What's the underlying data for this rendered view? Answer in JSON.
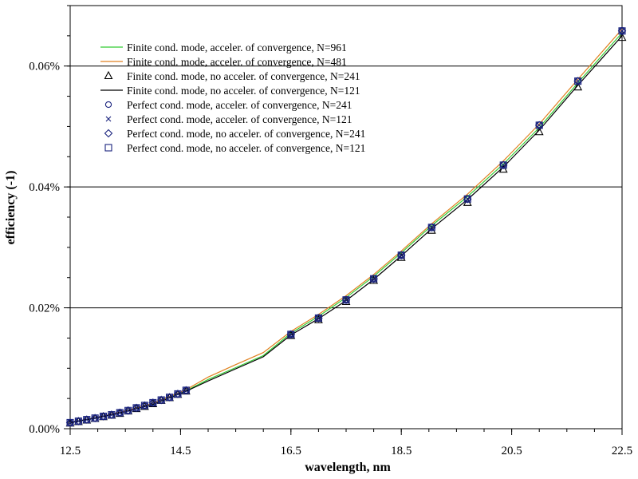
{
  "chart_data": {
    "type": "line",
    "xlabel": "wavelength, nm",
    "ylabel": "efficiency (-1)",
    "xlim": [
      12.5,
      22.5
    ],
    "ylim": [
      0,
      0.0007
    ],
    "x_ticks": [
      12.5,
      14.5,
      16.5,
      18.5,
      20.5,
      22.5
    ],
    "x_tick_labels": [
      "12.5",
      "14.5",
      "16.5",
      "18.5",
      "20.5",
      "22.5"
    ],
    "y_ticks": [
      0,
      0.0002,
      0.0004,
      0.0006
    ],
    "y_tick_labels": [
      "0.00%",
      "0.02%",
      "0.04%",
      "0.06%"
    ],
    "y_minor_step": 5e-05,
    "x_minor_step": 0.5,
    "grid": "horizontal major",
    "legend_placement": "top-left",
    "colors": {
      "green": "#33cc33",
      "orange": "#e08020",
      "black": "#000000",
      "marker": "#1a237e"
    },
    "marker_x": [
      12.5,
      12.65,
      12.8,
      12.95,
      13.1,
      13.25,
      13.4,
      13.55,
      13.7,
      13.85,
      14.0,
      14.15,
      14.3,
      14.45,
      14.6,
      16.5,
      17.0,
      17.5,
      18.0,
      18.5,
      19.05,
      19.7,
      20.35,
      21.0,
      21.7,
      22.5
    ],
    "series": [
      {
        "name": "Finite cond. mode, acceler. of convergence, N=961",
        "style": "line",
        "color": "#33cc33",
        "x": [
          12.5,
          13.0,
          13.5,
          14.0,
          14.6,
          15.0,
          15.5,
          16.0,
          16.5,
          17.0,
          17.5,
          18.0,
          18.5,
          19.05,
          19.7,
          20.35,
          21.0,
          21.7,
          22.5
        ],
        "values": [
          1e-05,
          1.85e-05,
          2.85e-05,
          4.05e-05,
          6.25e-05,
          8.15e-05,
          0.000101,
          0.000121,
          0.000158,
          0.000186,
          0.000217,
          0.000252,
          0.000291,
          0.000336,
          0.000384,
          0.000438,
          0.000498,
          0.000572,
          0.000655
        ]
      },
      {
        "name": "Finite cond. mode, acceler. of convergence, N=481",
        "style": "line",
        "color": "#e08020",
        "x": [
          12.5,
          13.0,
          13.5,
          14.0,
          14.6,
          15.0,
          15.5,
          16.0,
          16.5,
          17.0,
          17.5,
          18.0,
          18.5,
          19.05,
          19.7,
          20.35,
          21.0,
          21.7,
          22.5
        ],
        "values": [
          1e-05,
          1.9e-05,
          2.95e-05,
          4.2e-05,
          6.45e-05,
          8.55e-05,
          0.000106,
          0.000126,
          0.000161,
          0.000189,
          0.00022,
          0.000255,
          0.000294,
          0.000339,
          0.000388,
          0.000443,
          0.000504,
          0.000578,
          0.000661
        ]
      },
      {
        "name": "Finite cond. mode, no acceler. of convergence, N=241",
        "style": "marker",
        "marker": "triangle",
        "values": [
          9e-06,
          1.15e-05,
          1.4e-05,
          1.65e-05,
          1.95e-05,
          2.2e-05,
          2.5e-05,
          2.9e-05,
          3.3e-05,
          3.65e-05,
          4.1e-05,
          4.65e-05,
          5.1e-05,
          5.65e-05,
          6.2e-05,
          0.000154,
          0.00018,
          0.00021,
          0.000245,
          0.000283,
          0.000328,
          0.000374,
          0.000429,
          0.000491,
          0.000565,
          0.000647
        ]
      },
      {
        "name": "Finite cond. mode, no acceler. of convergence, N=121",
        "style": "line",
        "color": "#000000",
        "x": [
          12.5,
          13.0,
          13.5,
          14.0,
          14.6,
          15.0,
          15.5,
          16.0,
          16.5,
          17.0,
          17.5,
          18.0,
          18.5,
          19.05,
          19.7,
          20.35,
          21.0,
          21.7,
          22.5
        ],
        "values": [
          1e-05,
          1.85e-05,
          2.8e-05,
          4e-05,
          6.2e-05,
          7.9e-05,
          9.9e-05,
          0.000119,
          0.000155,
          0.000182,
          0.000212,
          0.000247,
          0.000286,
          0.000331,
          0.000379,
          0.000433,
          0.000494,
          0.000568,
          0.00065
        ]
      },
      {
        "name": "Perfect cond. mode, acceler. of convergence, N=241",
        "style": "marker",
        "marker": "circle",
        "values": [
          1e-05,
          1.25e-05,
          1.5e-05,
          1.75e-05,
          2.05e-05,
          2.3e-05,
          2.65e-05,
          3e-05,
          3.45e-05,
          3.85e-05,
          4.3e-05,
          4.75e-05,
          5.2e-05,
          5.75e-05,
          6.35e-05,
          0.000157,
          0.000184,
          0.000214,
          0.000249,
          0.000288,
          0.000334,
          0.000381,
          0.000437,
          0.000503,
          0.000576,
          0.000659
        ]
      },
      {
        "name": "Perfect cond. mode, acceler. of convergence, N=121",
        "style": "marker",
        "marker": "cross",
        "values": [
          1e-05,
          1.25e-05,
          1.5e-05,
          1.75e-05,
          2.05e-05,
          2.3e-05,
          2.65e-05,
          3e-05,
          3.45e-05,
          3.85e-05,
          4.3e-05,
          4.75e-05,
          5.2e-05,
          5.75e-05,
          6.35e-05,
          0.000156,
          0.000183,
          0.000213,
          0.000248,
          0.000287,
          0.000333,
          0.00038,
          0.000436,
          0.000502,
          0.000575,
          0.000658
        ]
      },
      {
        "name": "Perfect cond. mode, no acceler. of convergence, N=241",
        "style": "marker",
        "marker": "diamond",
        "values": [
          1e-05,
          1.25e-05,
          1.5e-05,
          1.75e-05,
          2.05e-05,
          2.3e-05,
          2.65e-05,
          3e-05,
          3.45e-05,
          3.85e-05,
          4.3e-05,
          4.75e-05,
          5.2e-05,
          5.75e-05,
          6.35e-05,
          0.000156,
          0.000183,
          0.000213,
          0.000248,
          0.000287,
          0.000333,
          0.00038,
          0.000436,
          0.000502,
          0.000575,
          0.000658
        ]
      },
      {
        "name": "Perfect cond. mode, no acceler. of convergence, N=121",
        "style": "marker",
        "marker": "square",
        "values": [
          1e-05,
          1.25e-05,
          1.5e-05,
          1.75e-05,
          2.05e-05,
          2.3e-05,
          2.65e-05,
          3e-05,
          3.45e-05,
          3.85e-05,
          4.3e-05,
          4.75e-05,
          5.2e-05,
          5.75e-05,
          6.35e-05,
          0.000156,
          0.000183,
          0.000213,
          0.000248,
          0.000287,
          0.000333,
          0.00038,
          0.000436,
          0.000502,
          0.000575,
          0.000658
        ]
      }
    ]
  }
}
